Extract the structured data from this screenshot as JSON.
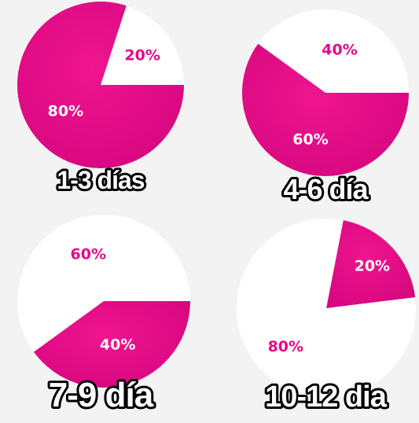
{
  "colors": {
    "magenta": "#e8088a",
    "white": "#ffffff",
    "label_on_magenta": "#ffffff",
    "label_on_white": "#e8088a",
    "caption_fill": "#ffffff",
    "caption_stroke": "#000000"
  },
  "chart_data": [
    {
      "type": "pie",
      "title": "1-3 días",
      "slices": [
        {
          "label": "20%",
          "value": 20,
          "color": "#ffffff"
        },
        {
          "label": "80%",
          "value": 80,
          "color": "#e8088a"
        }
      ]
    },
    {
      "type": "pie",
      "title": "4-6 día",
      "slices": [
        {
          "label": "40%",
          "value": 40,
          "color": "#ffffff"
        },
        {
          "label": "60%",
          "value": 60,
          "color": "#e8088a"
        }
      ]
    },
    {
      "type": "pie",
      "title": "7-9 día",
      "slices": [
        {
          "label": "60%",
          "value": 60,
          "color": "#ffffff"
        },
        {
          "label": "40%",
          "value": 40,
          "color": "#e8088a"
        }
      ]
    },
    {
      "type": "pie",
      "title": "10-12 dia",
      "slices": [
        {
          "label": "20%",
          "value": 20,
          "color": "#e8088a"
        },
        {
          "label": "80%",
          "value": 80,
          "color": "#ffffff"
        }
      ]
    }
  ]
}
